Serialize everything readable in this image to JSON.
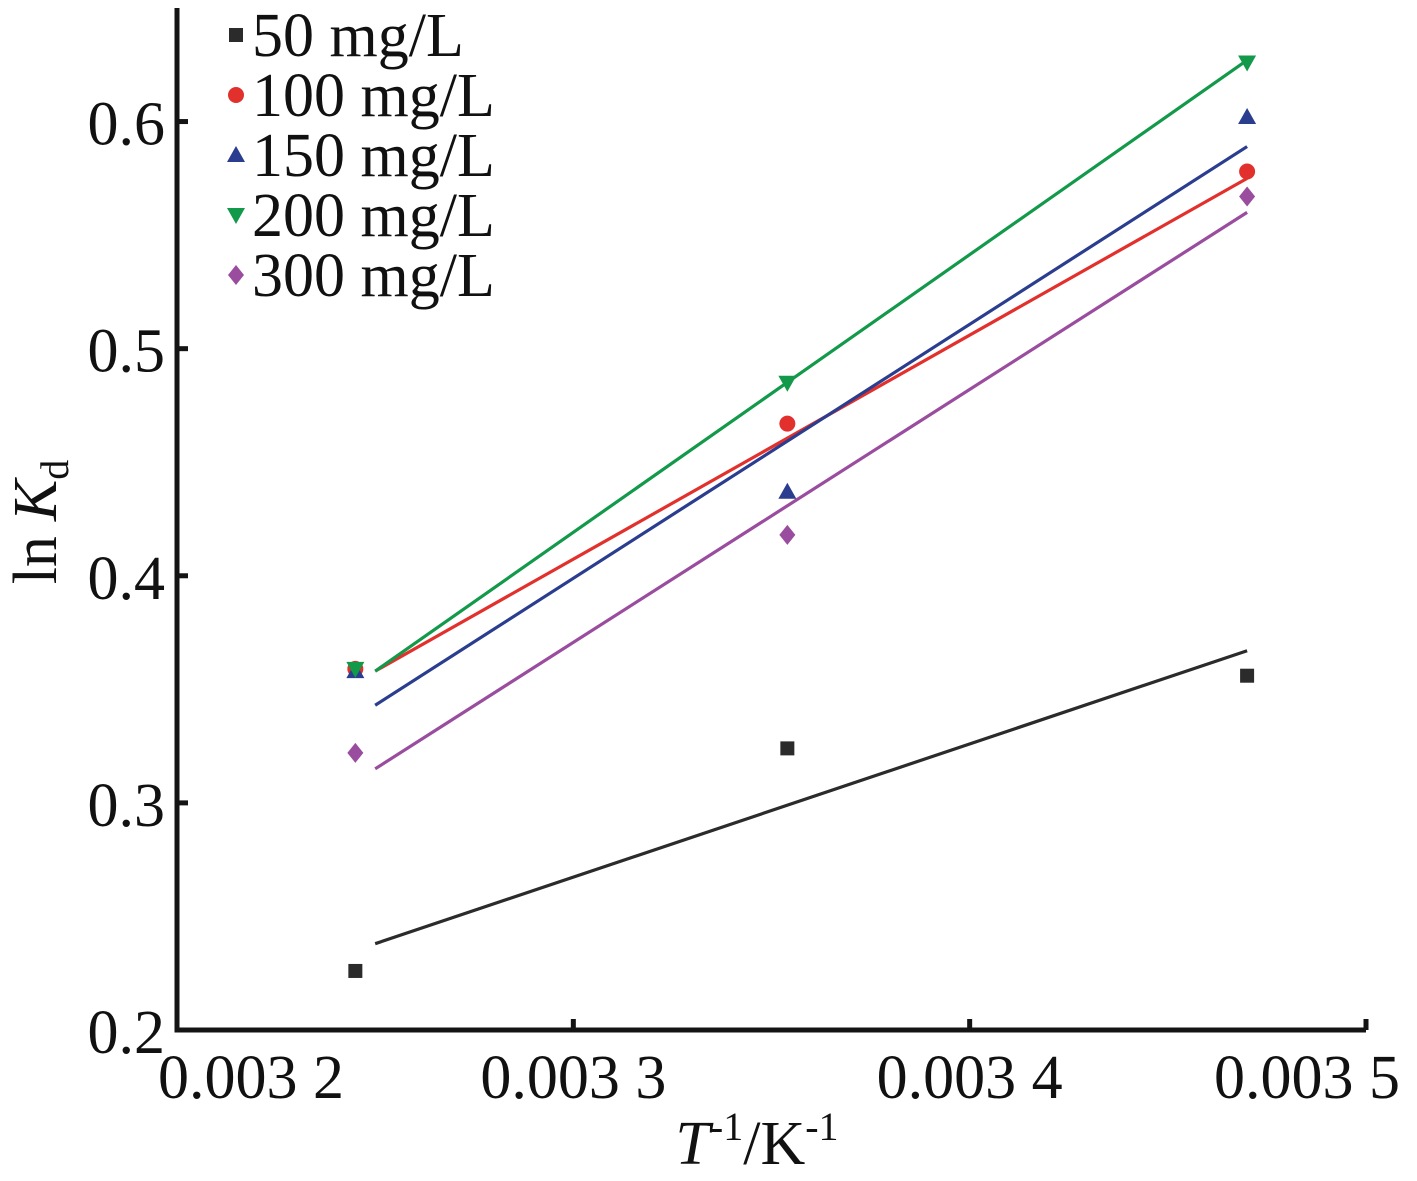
{
  "chart_data": {
    "type": "scatter",
    "x": [
      0.003245,
      0.003354,
      0.00347
    ],
    "xlim": [
      0.0032,
      0.0035
    ],
    "ylim": [
      0.2,
      0.65
    ],
    "x_ticks": [
      0.0032,
      0.0033,
      0.0034,
      0.0035
    ],
    "x_tick_labels": [
      "0.003 2",
      "0.003 3",
      "0.003 4",
      "0.003 5"
    ],
    "y_ticks": [
      0.2,
      0.3,
      0.4,
      0.5,
      0.6
    ],
    "y_tick_labels": [
      "0.2",
      "0.3",
      "0.4",
      "0.5",
      "0.6"
    ],
    "xlabel": {
      "symbol": "T",
      "symbol_exp": "-1",
      "unit": "/K",
      "unit_exp": "-1"
    },
    "ylabel": {
      "prefix": "ln",
      "symbol": "K",
      "subscript": "d"
    },
    "grid": false,
    "legend_placement": "top-left",
    "series": [
      {
        "name": "50 mg/L",
        "marker": "square",
        "color": "#2b2b2b",
        "values": [
          0.226,
          0.324,
          0.356
        ],
        "fit": {
          "x": [
            0.00325,
            0.00347
          ],
          "y": [
            0.238,
            0.367
          ]
        }
      },
      {
        "name": "100 mg/L",
        "marker": "circle",
        "color": "#e2302c",
        "values": [
          0.359,
          0.467,
          0.578
        ],
        "fit": {
          "x": [
            0.00325,
            0.00347
          ],
          "y": [
            0.358,
            0.575
          ]
        }
      },
      {
        "name": "150 mg/L",
        "marker": "triangle-up",
        "color": "#2a3d8f",
        "values": [
          0.358,
          0.437,
          0.602
        ],
        "fit": {
          "x": [
            0.00325,
            0.00347
          ],
          "y": [
            0.343,
            0.589
          ]
        }
      },
      {
        "name": "200 mg/L",
        "marker": "triangle-down",
        "color": "#12994a",
        "values": [
          0.359,
          0.485,
          0.626
        ],
        "fit": {
          "x": [
            0.00325,
            0.00347
          ],
          "y": [
            0.358,
            0.627
          ]
        }
      },
      {
        "name": "300 mg/L",
        "marker": "diamond",
        "color": "#9a4d9f",
        "values": [
          0.322,
          0.418,
          0.567
        ],
        "fit": {
          "x": [
            0.00325,
            0.00347
          ],
          "y": [
            0.315,
            0.56
          ]
        }
      }
    ]
  }
}
